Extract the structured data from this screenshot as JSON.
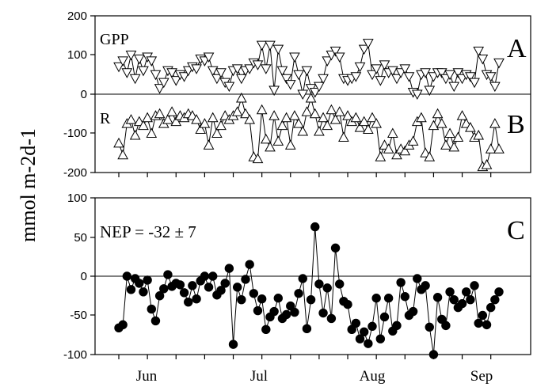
{
  "chart_data": [
    {
      "type": "line",
      "panel_letter": "A",
      "title": "",
      "ylabel": "mmol m-2d-1",
      "ylim": [
        -200,
        200
      ],
      "yticks": [
        "200",
        "100",
        "0",
        "-100",
        "-200"
      ],
      "x_categories": [
        "Jun",
        "Jul",
        "Aug",
        "Sep"
      ],
      "series": [
        {
          "name": "GPP",
          "marker": "triangle-down-open",
          "x": [
            155,
            156,
            157,
            158,
            159,
            160,
            161,
            162,
            163,
            164,
            165,
            166,
            167,
            168,
            169,
            170,
            171,
            172,
            173,
            174,
            175,
            176,
            177,
            178,
            179,
            180,
            181,
            182,
            183,
            184,
            185,
            186,
            187,
            188,
            189,
            190,
            191,
            192,
            193,
            194,
            195,
            196,
            197,
            198,
            199,
            200,
            201,
            202,
            203,
            204,
            205,
            206,
            207,
            208,
            209,
            210,
            211,
            212,
            213,
            214,
            215,
            216,
            217,
            218,
            219,
            220,
            221,
            222,
            223,
            224,
            225,
            226,
            227,
            228,
            229,
            230,
            231,
            232,
            233,
            234,
            235,
            236,
            237,
            238,
            239,
            240,
            241,
            242,
            243,
            244,
            245,
            246,
            247,
            248
          ],
          "y": [
            70,
            85,
            55,
            100,
            40,
            90,
            60,
            95,
            85,
            50,
            15,
            30,
            60,
            55,
            35,
            50,
            45,
            60,
            70,
            65,
            90,
            85,
            95,
            60,
            40,
            55,
            30,
            20,
            60,
            65,
            40,
            60,
            65,
            80,
            75,
            125,
            65,
            125,
            10,
            115,
            60,
            40,
            25,
            95,
            50,
            0,
            60,
            15,
            5,
            20,
            40,
            85,
            100,
            110,
            95,
            40,
            35,
            40,
            45,
            70,
            115,
            130,
            50,
            65,
            35,
            75,
            55,
            60,
            40,
            55,
            65,
            45,
            5,
            0,
            50,
            55,
            10,
            45,
            55,
            55,
            40,
            50,
            20,
            55,
            40,
            50,
            45,
            30,
            110,
            90,
            50,
            45,
            20,
            80
          ]
        }
      ]
    },
    {
      "type": "line",
      "panel_letter": "B",
      "title": "",
      "ylim": [
        -200,
        200
      ],
      "series": [
        {
          "name": "R",
          "marker": "triangle-up-open",
          "x": [
            155,
            156,
            157,
            158,
            159,
            160,
            161,
            162,
            163,
            164,
            165,
            166,
            167,
            168,
            169,
            170,
            171,
            172,
            173,
            174,
            175,
            176,
            177,
            178,
            179,
            180,
            181,
            182,
            183,
            184,
            185,
            186,
            187,
            188,
            189,
            190,
            191,
            192,
            193,
            194,
            195,
            196,
            197,
            198,
            199,
            200,
            201,
            202,
            203,
            204,
            205,
            206,
            207,
            208,
            209,
            210,
            211,
            212,
            213,
            214,
            215,
            216,
            217,
            218,
            219,
            220,
            221,
            222,
            223,
            224,
            225,
            226,
            227,
            228,
            229,
            230,
            231,
            232,
            233,
            234,
            235,
            236,
            237,
            238,
            239,
            240,
            241,
            242,
            243,
            244,
            245,
            246,
            247,
            248
          ],
          "y": [
            -125,
            -155,
            -75,
            -65,
            -105,
            -70,
            -80,
            -60,
            -100,
            -55,
            -50,
            -75,
            -65,
            -45,
            -70,
            -55,
            -60,
            -50,
            -55,
            -65,
            -90,
            -75,
            -130,
            -60,
            -100,
            -80,
            -55,
            -65,
            -55,
            -45,
            -10,
            -50,
            -65,
            -160,
            -165,
            -40,
            -115,
            -135,
            -55,
            -120,
            -80,
            -60,
            -130,
            -55,
            -75,
            -95,
            -45,
            -10,
            -50,
            -95,
            -60,
            -80,
            -40,
            -65,
            -45,
            -110,
            -55,
            -70,
            -60,
            -85,
            -70,
            -90,
            -60,
            -75,
            -160,
            -130,
            -140,
            -100,
            -155,
            -140,
            -145,
            -130,
            -120,
            -70,
            -60,
            -150,
            -160,
            -80,
            -50,
            -75,
            -130,
            -100,
            -135,
            -110,
            -55,
            -75,
            -85,
            -110,
            -105,
            -185,
            -180,
            -140,
            -75,
            -140
          ]
        }
      ]
    },
    {
      "type": "line",
      "panel_letter": "C",
      "title": "",
      "annotation": "NEP = -32 ± 7",
      "ylim": [
        -100,
        100
      ],
      "yticks": [
        "100",
        "50",
        "0",
        "-50",
        "-100"
      ],
      "series": [
        {
          "name": "NEP",
          "marker": "circle-filled",
          "x": [
            155,
            156,
            157,
            158,
            159,
            160,
            161,
            162,
            163,
            164,
            165,
            166,
            167,
            168,
            169,
            170,
            171,
            172,
            173,
            174,
            175,
            176,
            177,
            178,
            179,
            180,
            181,
            182,
            183,
            184,
            185,
            186,
            187,
            188,
            189,
            190,
            191,
            192,
            193,
            194,
            195,
            196,
            197,
            198,
            199,
            200,
            201,
            202,
            203,
            204,
            205,
            206,
            207,
            208,
            209,
            210,
            211,
            212,
            213,
            214,
            215,
            216,
            217,
            218,
            219,
            220,
            221,
            222,
            223,
            224,
            225,
            226,
            227,
            228,
            229,
            230,
            231,
            232,
            233,
            234,
            235,
            236,
            237,
            238,
            239,
            240,
            241,
            242,
            243,
            244,
            245,
            246,
            247,
            248
          ],
          "y": [
            -66,
            -62,
            0,
            -17,
            -3,
            -9,
            -20,
            -5,
            -42,
            -57,
            -25,
            -16,
            2,
            -13,
            -9,
            -11,
            -21,
            -33,
            -12,
            -29,
            -6,
            0,
            -14,
            0,
            -24,
            -18,
            -9,
            10,
            -87,
            -14,
            -30,
            -4,
            15,
            -22,
            -44,
            -29,
            -68,
            -52,
            -45,
            -28,
            -54,
            -49,
            -38,
            -46,
            -22,
            -3,
            -67,
            -30,
            63,
            -10,
            -47,
            -15,
            -54,
            36,
            -10,
            -32,
            -36,
            -68,
            -60,
            -80,
            -71,
            -86,
            -64,
            -28,
            -80,
            -52,
            -28,
            -70,
            -63,
            -8,
            -26,
            -50,
            -45,
            -3,
            -17,
            -12,
            -65,
            -110,
            -27,
            -55,
            -63,
            -20,
            -30,
            -40,
            -35,
            -20,
            -30,
            -12,
            -60,
            -50,
            -62,
            -40,
            -30,
            -20
          ],
          "x_note": ""
        }
      ]
    }
  ],
  "labels": {
    "gpp": "GPP",
    "r": "R",
    "a": "A",
    "b": "B",
    "c": "C",
    "nep": "NEP = -32 ± 7",
    "ylabel": "mmol m-2d-1",
    "ticks_top": [
      "200",
      "100",
      "0",
      "-100",
      "-200"
    ],
    "ticks_bottom": [
      "100",
      "50",
      "0",
      "-50",
      "-100"
    ],
    "months": [
      "Jun",
      "Jul",
      "Aug",
      "Sep"
    ]
  },
  "colors": {
    "ink": "#000000",
    "background": "#ffffff"
  }
}
